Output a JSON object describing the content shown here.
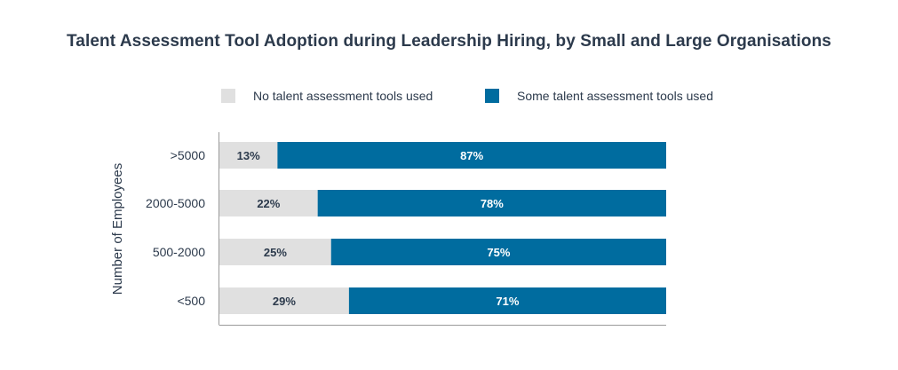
{
  "chart_data": {
    "type": "bar",
    "orientation": "horizontal",
    "stacked": true,
    "percent_stacked": true,
    "title": "Talent Assessment Tool Adoption during Leadership Hiring, by Small and Large Organisations",
    "xlabel": "",
    "ylabel": "Number of Employees",
    "xlim": [
      0,
      100
    ],
    "grid": false,
    "legend_position": "top",
    "categories": [
      ">5000",
      "2000-5000",
      "500-2000",
      "<500"
    ],
    "series": [
      {
        "name": "No talent assessment tools used",
        "values": [
          13,
          22,
          25,
          29
        ],
        "labels": [
          "13%",
          "22%",
          "25%",
          "29%"
        ],
        "color": "#e0e0e0"
      },
      {
        "name": "Some talent assessment tools used",
        "values": [
          87,
          78,
          75,
          71
        ],
        "labels": [
          "87%",
          "78%",
          "75%",
          "71%"
        ],
        "color": "#006c9f"
      }
    ],
    "colors": {
      "axis": "#9a9a9a",
      "text": "#2c3a4c",
      "label_on_light": "#2c3a4c",
      "label_on_dark": "#ffffff"
    }
  }
}
